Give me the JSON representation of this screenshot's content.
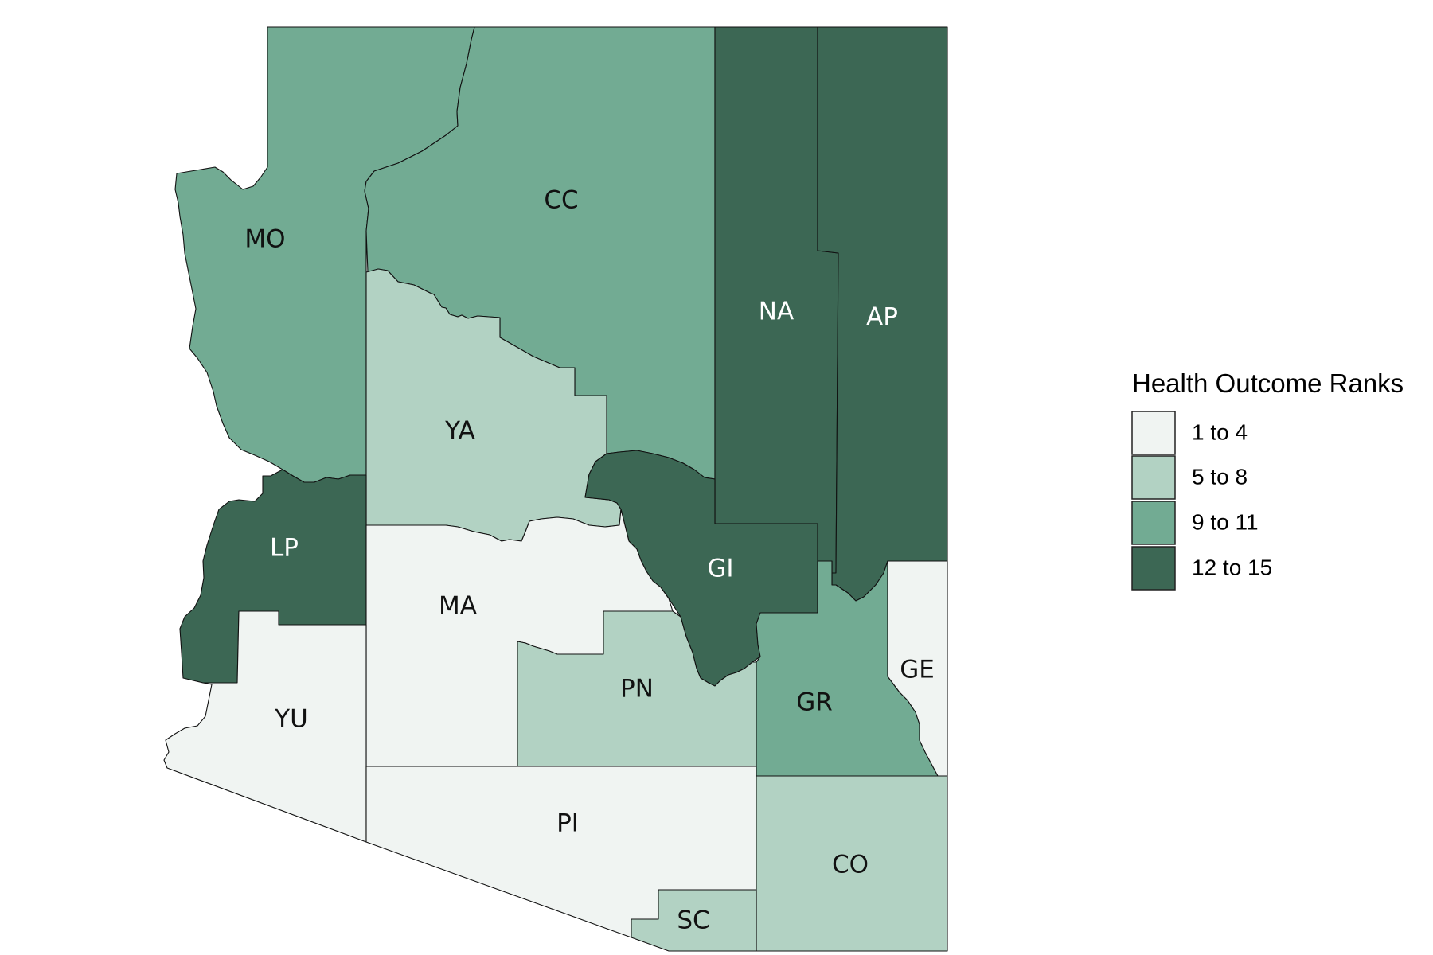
{
  "legend": {
    "title": "Health Outcome Ranks",
    "items": [
      {
        "key": "c1",
        "label": "1 to 4",
        "color": "#f0f4f2"
      },
      {
        "key": "c2",
        "label": "5 to 8",
        "color": "#b2d2c3"
      },
      {
        "key": "c3",
        "label": "9 to 11",
        "color": "#72ab93"
      },
      {
        "key": "c4",
        "label": "12 to 15",
        "color": "#3c6754"
      }
    ]
  },
  "counties": [
    {
      "id": "MO",
      "label": "MO",
      "class": "c3"
    },
    {
      "id": "CC",
      "label": "CC",
      "class": "c3"
    },
    {
      "id": "NA",
      "label": "NA",
      "class": "c4"
    },
    {
      "id": "AP",
      "label": "AP",
      "class": "c4"
    },
    {
      "id": "YA",
      "label": "YA",
      "class": "c2"
    },
    {
      "id": "LP",
      "label": "LP",
      "class": "c4"
    },
    {
      "id": "GI",
      "label": "GI",
      "class": "c4"
    },
    {
      "id": "MA",
      "label": "MA",
      "class": "c1"
    },
    {
      "id": "YU",
      "label": "YU",
      "class": "c1"
    },
    {
      "id": "PN",
      "label": "PN",
      "class": "c2"
    },
    {
      "id": "GR",
      "label": "GR",
      "class": "c3"
    },
    {
      "id": "GE",
      "label": "GE",
      "class": "c1"
    },
    {
      "id": "PI",
      "label": "PI",
      "class": "c1"
    },
    {
      "id": "CO",
      "label": "CO",
      "class": "c2"
    },
    {
      "id": "SC",
      "label": "SC",
      "class": "c2"
    }
  ]
}
